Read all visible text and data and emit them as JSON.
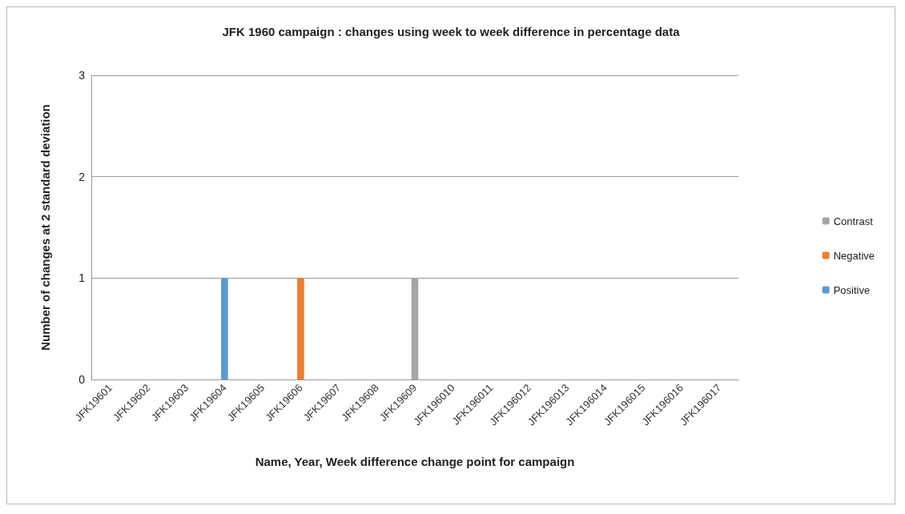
{
  "chart_data": {
    "type": "bar",
    "title": "JFK 1960 campaign : changes using week to week difference in percentage data",
    "xlabel": "Name, Year, Week difference change point for campaign",
    "ylabel": "Number of changes at 2 standard deviation",
    "categories": [
      "JFK19601",
      "JFK19602",
      "JFK19603",
      "JFK19604",
      "JFK19605",
      "JFK19606",
      "JFK19607",
      "JFK19608",
      "JFK19609",
      "JFK196010",
      "JFK196011",
      "JFK196012",
      "JFK196013",
      "JFK196014",
      "JFK196015",
      "JFK196016",
      "JFK196017"
    ],
    "series": [
      {
        "name": "Positive",
        "color": "#5b9bd5",
        "values": [
          0,
          0,
          0,
          1,
          0,
          0,
          0,
          0,
          0,
          0,
          0,
          0,
          0,
          0,
          0,
          0,
          0
        ]
      },
      {
        "name": "Negative",
        "color": "#ed7d31",
        "values": [
          0,
          0,
          0,
          0,
          0,
          1,
          0,
          0,
          0,
          0,
          0,
          0,
          0,
          0,
          0,
          0,
          0
        ]
      },
      {
        "name": "Contrast",
        "color": "#a5a5a5",
        "values": [
          0,
          0,
          0,
          0,
          0,
          0,
          0,
          0,
          1,
          0,
          0,
          0,
          0,
          0,
          0,
          0,
          0
        ]
      }
    ],
    "stacked": true,
    "ylim": [
      0,
      3
    ],
    "yticks": [
      0,
      1,
      2,
      3
    ],
    "grid": "y",
    "legend": "right"
  }
}
